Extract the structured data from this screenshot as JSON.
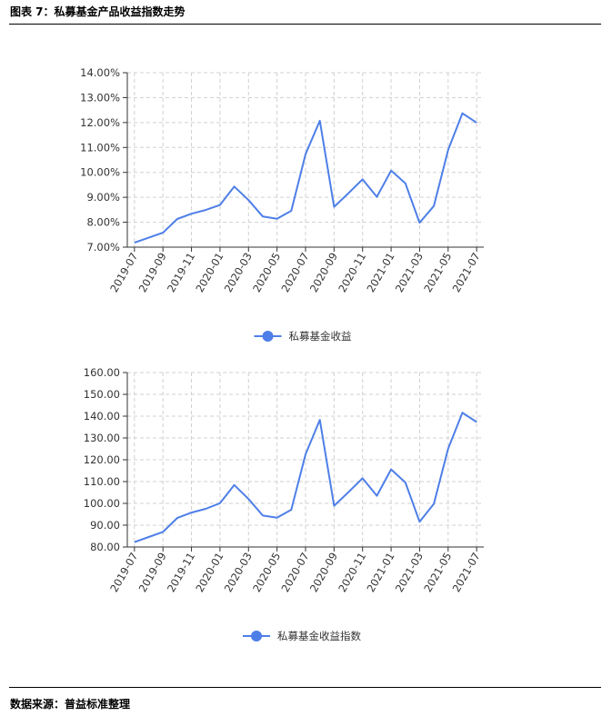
{
  "header": {
    "title": "图表 7：私募基金产品收益指数走势"
  },
  "footer": {
    "source": "数据来源：普益标准整理"
  },
  "colors": {
    "line": "#4e7fe8",
    "axis": "#333333",
    "grid": "#d0d0d0"
  },
  "chart_data": [
    {
      "type": "line",
      "title": "",
      "xlabel": "",
      "ylabel": "",
      "x": [
        "2019-07",
        "2019-08",
        "2019-09",
        "2019-10",
        "2019-11",
        "2019-12",
        "2020-01",
        "2020-02",
        "2020-03",
        "2020-04",
        "2020-05",
        "2020-06",
        "2020-07",
        "2020-08",
        "2020-09",
        "2020-10",
        "2020-11",
        "2020-12",
        "2021-01",
        "2021-02",
        "2021-03",
        "2021-04",
        "2021-05",
        "2021-06",
        "2021-07"
      ],
      "x_tick_labels": [
        "2019-07",
        "2019-09",
        "2019-11",
        "2020-01",
        "2020-03",
        "2020-05",
        "2020-07",
        "2020-09",
        "2020-11",
        "2021-01",
        "2021-03",
        "2021-05",
        "2021-07"
      ],
      "y_tick_labels": [
        "7.00%",
        "8.00%",
        "9.00%",
        "10.00%",
        "11.00%",
        "12.00%",
        "13.00%",
        "14.00%"
      ],
      "ylim": [
        7,
        14
      ],
      "y_unit": "%",
      "grid": true,
      "legend_position": "bottom-center",
      "series": [
        {
          "name": "私募基金收益",
          "values": [
            7.18,
            7.38,
            7.58,
            8.13,
            8.34,
            8.49,
            8.69,
            9.43,
            8.89,
            8.23,
            8.14,
            8.46,
            10.73,
            12.07,
            8.62,
            9.16,
            9.72,
            9.02,
            10.07,
            9.56,
            7.98,
            8.65,
            10.9,
            12.37,
            11.99
          ]
        }
      ]
    },
    {
      "type": "line",
      "title": "",
      "xlabel": "",
      "ylabel": "",
      "x": [
        "2019-07",
        "2019-08",
        "2019-09",
        "2019-10",
        "2019-11",
        "2019-12",
        "2020-01",
        "2020-02",
        "2020-03",
        "2020-04",
        "2020-05",
        "2020-06",
        "2020-07",
        "2020-08",
        "2020-09",
        "2020-10",
        "2020-11",
        "2020-12",
        "2021-01",
        "2021-02",
        "2021-03",
        "2021-04",
        "2021-05",
        "2021-06",
        "2021-07"
      ],
      "x_tick_labels": [
        "2019-07",
        "2019-09",
        "2019-11",
        "2020-01",
        "2020-03",
        "2020-05",
        "2020-07",
        "2020-09",
        "2020-11",
        "2021-01",
        "2021-03",
        "2021-05",
        "2021-07"
      ],
      "y_tick_labels": [
        "80.00",
        "90.00",
        "100.00",
        "110.00",
        "120.00",
        "130.00",
        "140.00",
        "150.00",
        "160.00"
      ],
      "ylim": [
        80,
        160
      ],
      "grid": true,
      "legend_position": "bottom-center",
      "series": [
        {
          "name": "私募基金收益指数",
          "values": [
            82.2,
            84.6,
            86.9,
            93.3,
            95.8,
            97.5,
            100.1,
            108.4,
            102.0,
            94.4,
            93.4,
            97.1,
            122.5,
            138.3,
            98.9,
            105.1,
            111.5,
            103.5,
            115.6,
            109.6,
            91.6,
            99.8,
            125.1,
            141.6,
            137.3
          ]
        }
      ]
    }
  ]
}
